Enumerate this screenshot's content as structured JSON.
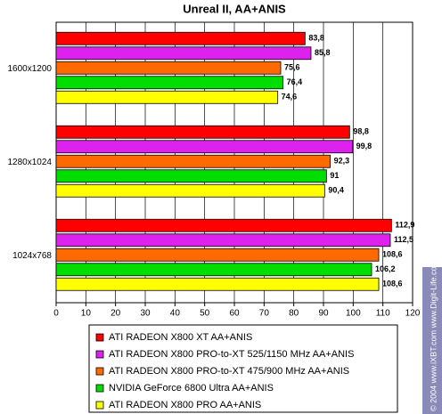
{
  "chart_data": {
    "type": "hbar",
    "title": "Unreal II, AA+ANIS",
    "categories": [
      "1600x1200",
      "1280x1024",
      "1024x768"
    ],
    "series": [
      {
        "name": "ATI RADEON X800 XT AA+ANIS",
        "color": "#ff0000",
        "values": [
          83.8,
          98.8,
          112.9
        ],
        "value_labels": [
          "83,8",
          "98,8",
          "112,9"
        ]
      },
      {
        "name": "ATI RADEON X800 PRO-to-XT 525/1150 MHz AA+ANIS",
        "color": "#dd22ee",
        "values": [
          85.8,
          99.8,
          112.5
        ],
        "value_labels": [
          "85,8",
          "99,8",
          "112,5"
        ]
      },
      {
        "name": "ATI RADEON X800 PRO-to-XT 475/900 MHz AA+ANIS",
        "color": "#ff6a00",
        "values": [
          75.6,
          92.3,
          108.6
        ],
        "value_labels": [
          "75,6",
          "92,3",
          "108,6"
        ]
      },
      {
        "name": "NVIDIA GeForce 6800 Ultra AA+ANIS",
        "color": "#00dd00",
        "values": [
          76.4,
          91,
          106.2
        ],
        "value_labels": [
          "76,4",
          "91",
          "106,2"
        ]
      },
      {
        "name": "ATI RADEON X800 PRO AA+ANIS",
        "color": "#ffff00",
        "values": [
          74.6,
          90.4,
          108.6
        ],
        "value_labels": [
          "74,6",
          "90,4",
          "108,6"
        ]
      }
    ],
    "xlim": [
      0,
      120
    ],
    "xticks": [
      0,
      10,
      20,
      30,
      40,
      50,
      60,
      70,
      80,
      90,
      100,
      110,
      120
    ],
    "grid": true,
    "watermark": "© 2004 www.iXBT.com  www.Digit-Life.com"
  }
}
